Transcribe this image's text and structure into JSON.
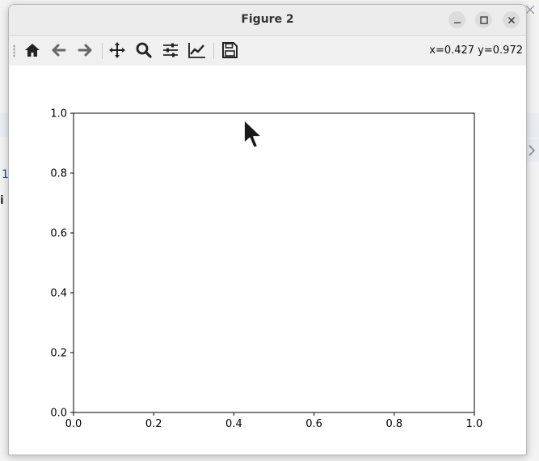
{
  "window": {
    "title": "Figure 2",
    "controls": {
      "minimize": "–",
      "maximize": "□",
      "close": "×"
    }
  },
  "toolbar": {
    "buttons": [
      {
        "name": "home",
        "icon": "home-icon"
      },
      {
        "name": "back",
        "icon": "arrow-left-icon"
      },
      {
        "name": "forward",
        "icon": "arrow-right-icon"
      },
      {
        "name": "pan",
        "icon": "move-icon"
      },
      {
        "name": "zoom",
        "icon": "magnifier-icon"
      },
      {
        "name": "subplots",
        "icon": "sliders-icon"
      },
      {
        "name": "customize",
        "icon": "line-chart-icon"
      },
      {
        "name": "save",
        "icon": "floppy-icon"
      }
    ],
    "coordinates": "x=0.427 y=0.972"
  },
  "background": {
    "fragment_1": "1",
    "fragment_2": "i"
  },
  "chart_data": {
    "type": "line",
    "title": "",
    "xlabel": "",
    "ylabel": "",
    "series": [],
    "xlim": [
      0.0,
      1.0
    ],
    "ylim": [
      0.0,
      1.0
    ],
    "xticks": [
      "0.0",
      "0.2",
      "0.4",
      "0.6",
      "0.8",
      "1.0"
    ],
    "yticks": [
      "0.0",
      "0.2",
      "0.4",
      "0.6",
      "0.8",
      "1.0"
    ],
    "grid": false
  },
  "colors": {
    "axes": "#000000",
    "icon": "#222222",
    "titlebar": "#ececec"
  }
}
